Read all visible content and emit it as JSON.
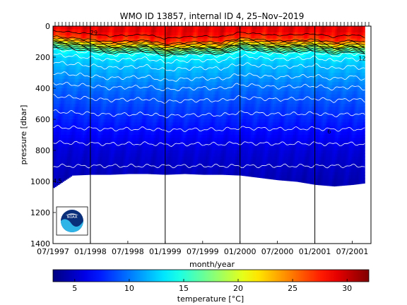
{
  "chart_data": {
    "type": "heatmap",
    "title": "WMO ID 13857, internal ID 4, 25–Nov–2019",
    "xlabel": "month/year",
    "ylabel": "pressure [dbar]",
    "xlim": [
      "1997-07",
      "2001-10"
    ],
    "ylim": [
      0,
      1400
    ],
    "y_inverted": true,
    "xticks": [
      "07/1997",
      "01/1998",
      "07/1998",
      "01/1999",
      "07/1999",
      "01/2000",
      "07/2000",
      "01/2001",
      "07/2001"
    ],
    "yticks": [
      0,
      200,
      400,
      600,
      800,
      1000,
      1200,
      1400
    ],
    "year_boundaries": [
      "1998-01",
      "1999-01",
      "2000-01",
      "2001-01"
    ],
    "profile_count_marks": 90,
    "colorbar": {
      "label": "temperature [°C]",
      "range": [
        3,
        32
      ],
      "ticks": [
        5,
        10,
        15,
        20,
        25,
        30
      ],
      "colormap": "jet"
    },
    "sections": [
      {
        "month": "1997-07",
        "mixed_layer_dbar": 60,
        "max_depth_dbar": 1040
      },
      {
        "month": "1997-10",
        "mixed_layer_dbar": 70,
        "max_depth_dbar": 960
      },
      {
        "month": "1998-01",
        "mixed_layer_dbar": 80,
        "max_depth_dbar": 955
      },
      {
        "month": "1998-04",
        "mixed_layer_dbar": 95,
        "max_depth_dbar": 955
      },
      {
        "month": "1998-07",
        "mixed_layer_dbar": 90,
        "max_depth_dbar": 950
      },
      {
        "month": "1998-10",
        "mixed_layer_dbar": 85,
        "max_depth_dbar": 950
      },
      {
        "month": "1999-01",
        "mixed_layer_dbar": 110,
        "max_depth_dbar": 955
      },
      {
        "month": "1999-04",
        "mixed_layer_dbar": 100,
        "max_depth_dbar": 950
      },
      {
        "month": "1999-07",
        "mixed_layer_dbar": 95,
        "max_depth_dbar": 955
      },
      {
        "month": "1999-10",
        "mixed_layer_dbar": 100,
        "max_depth_dbar": 955
      },
      {
        "month": "2000-01",
        "mixed_layer_dbar": 70,
        "max_depth_dbar": 960
      },
      {
        "month": "2000-04",
        "mixed_layer_dbar": 80,
        "max_depth_dbar": 975
      },
      {
        "month": "2000-07",
        "mixed_layer_dbar": 90,
        "max_depth_dbar": 990
      },
      {
        "month": "2000-10",
        "mixed_layer_dbar": 85,
        "max_depth_dbar": 1000
      },
      {
        "month": "2001-01",
        "mixed_layer_dbar": 80,
        "max_depth_dbar": 1020
      },
      {
        "month": "2001-04",
        "mixed_layer_dbar": 100,
        "max_depth_dbar": 1030
      },
      {
        "month": "2001-07",
        "mixed_layer_dbar": 85,
        "max_depth_dbar": 1020
      },
      {
        "month": "2001-09",
        "mixed_layer_dbar": 100,
        "max_depth_dbar": 1010
      }
    ],
    "temperature_profile": [
      {
        "pressure_dbar": 0,
        "temp_c": 29
      },
      {
        "pressure_dbar": 60,
        "temp_c": 27
      },
      {
        "pressure_dbar": 90,
        "temp_c": 22
      },
      {
        "pressure_dbar": 110,
        "temp_c": 18
      },
      {
        "pressure_dbar": 150,
        "temp_c": 14
      },
      {
        "pressure_dbar": 200,
        "temp_c": 12.5
      },
      {
        "pressure_dbar": 300,
        "temp_c": 11
      },
      {
        "pressure_dbar": 400,
        "temp_c": 9.5
      },
      {
        "pressure_dbar": 500,
        "temp_c": 8.5
      },
      {
        "pressure_dbar": 600,
        "temp_c": 7.5
      },
      {
        "pressure_dbar": 700,
        "temp_c": 6.5
      },
      {
        "pressure_dbar": 800,
        "temp_c": 5.5
      },
      {
        "pressure_dbar": 1000,
        "temp_c": 4.5
      }
    ],
    "contour_levels": [
      5,
      6,
      7,
      8,
      9,
      10,
      11,
      12,
      13,
      14,
      15,
      16,
      17,
      18,
      19,
      20,
      22,
      24,
      26,
      28
    ],
    "contour_labels": [
      {
        "text": "29",
        "month": "1998-01",
        "pressure_dbar": 55
      },
      {
        "text": "12",
        "month": "2001-08",
        "pressure_dbar": 220
      },
      {
        "text": "6",
        "month": "2001-03",
        "pressure_dbar": 690
      },
      {
        "text": "4.5",
        "month": "1997-07",
        "pressure_dbar": 1010
      }
    ],
    "logo": {
      "name": "noaa-logo",
      "text": "NOAA"
    }
  }
}
